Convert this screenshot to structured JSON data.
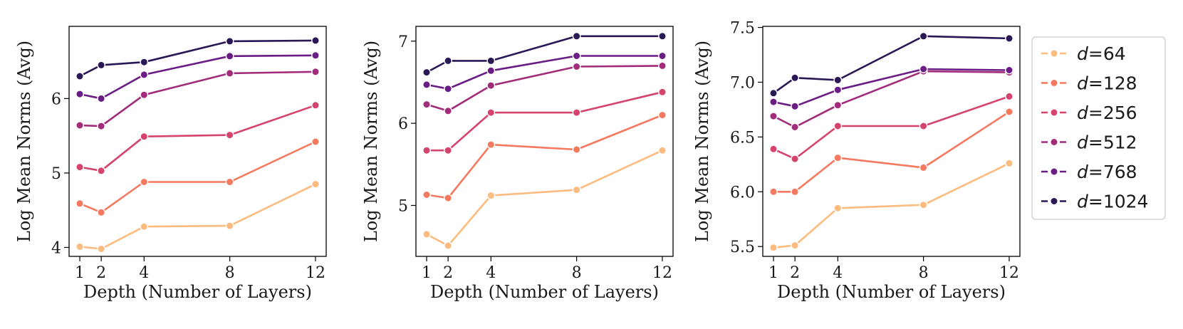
{
  "chart_data": [
    {
      "type": "line",
      "xlabel": "Depth (Number of Layers)",
      "ylabel": "Log Mean Norms (Avg)",
      "x": [
        1,
        2,
        4,
        8,
        12
      ],
      "xticks": [
        1,
        2,
        4,
        8,
        12
      ],
      "xlim": [
        0.5,
        12.5
      ],
      "ylim": [
        3.88,
        6.97
      ],
      "yticks": [
        4,
        5,
        6
      ],
      "series": [
        {
          "name": "d=64",
          "values": [
            4.01,
            3.98,
            4.28,
            4.29,
            4.85
          ]
        },
        {
          "name": "d=128",
          "values": [
            4.59,
            4.47,
            4.88,
            4.88,
            5.42
          ]
        },
        {
          "name": "d=256",
          "values": [
            5.08,
            5.03,
            5.49,
            5.51,
            5.91
          ]
        },
        {
          "name": "d=512",
          "values": [
            5.64,
            5.63,
            6.05,
            6.34,
            6.36
          ]
        },
        {
          "name": "d=768",
          "values": [
            6.06,
            6.0,
            6.32,
            6.57,
            6.58
          ]
        },
        {
          "name": "d=1024",
          "values": [
            6.3,
            6.45,
            6.49,
            6.77,
            6.78
          ]
        }
      ]
    },
    {
      "type": "line",
      "xlabel": "Depth (Number of Layers)",
      "ylabel": "Log Mean Norms (Avg)",
      "x": [
        1,
        2,
        4,
        8,
        12
      ],
      "xticks": [
        1,
        2,
        4,
        8,
        12
      ],
      "xlim": [
        0.5,
        12.5
      ],
      "ylim": [
        4.38,
        7.18
      ],
      "yticks": [
        5,
        6,
        7
      ],
      "series": [
        {
          "name": "d=64",
          "values": [
            4.65,
            4.51,
            5.12,
            5.19,
            5.67
          ]
        },
        {
          "name": "d=128",
          "values": [
            5.13,
            5.09,
            5.74,
            5.68,
            6.1
          ]
        },
        {
          "name": "d=256",
          "values": [
            5.67,
            5.67,
            6.13,
            6.13,
            6.38
          ]
        },
        {
          "name": "d=512",
          "values": [
            6.23,
            6.15,
            6.46,
            6.69,
            6.7
          ]
        },
        {
          "name": "d=768",
          "values": [
            6.47,
            6.42,
            6.64,
            6.82,
            6.82
          ]
        },
        {
          "name": "d=1024",
          "values": [
            6.62,
            6.76,
            6.76,
            7.06,
            7.06
          ]
        }
      ]
    },
    {
      "type": "line",
      "xlabel": "Depth (Number of Layers)",
      "ylabel": "Log Mean Norms (Avg)",
      "x": [
        1,
        2,
        4,
        8,
        12
      ],
      "xticks": [
        1,
        2,
        4,
        8,
        12
      ],
      "xlim": [
        0.5,
        12.5
      ],
      "ylim": [
        5.41,
        7.51
      ],
      "yticks": [
        5.5,
        6.0,
        6.5,
        7.0,
        7.5
      ],
      "series": [
        {
          "name": "d=64",
          "values": [
            5.49,
            5.51,
            5.85,
            5.88,
            6.26
          ]
        },
        {
          "name": "d=128",
          "values": [
            6.0,
            6.0,
            6.31,
            6.22,
            6.73
          ]
        },
        {
          "name": "d=256",
          "values": [
            6.39,
            6.3,
            6.6,
            6.6,
            6.87
          ]
        },
        {
          "name": "d=512",
          "values": [
            6.69,
            6.59,
            6.79,
            7.1,
            7.09
          ]
        },
        {
          "name": "d=768",
          "values": [
            6.82,
            6.78,
            6.93,
            7.12,
            7.11
          ]
        },
        {
          "name": "d=1024",
          "values": [
            6.9,
            7.04,
            7.02,
            7.42,
            7.4
          ]
        }
      ]
    }
  ],
  "legend": {
    "position": "right",
    "entries": [
      {
        "var": "d",
        "eq": "=64",
        "color": "#fcbb7f"
      },
      {
        "var": "d",
        "eq": "=128",
        "color": "#f4795f"
      },
      {
        "var": "d",
        "eq": "=256",
        "color": "#d5446d"
      },
      {
        "var": "d",
        "eq": "=512",
        "color": "#a22c79"
      },
      {
        "var": "d",
        "eq": "=768",
        "color": "#6a1d85"
      },
      {
        "var": "d",
        "eq": "=1024",
        "color": "#2a1856"
      }
    ]
  }
}
